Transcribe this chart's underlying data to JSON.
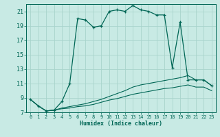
{
  "xlabel": "Humidex (Indice chaleur)",
  "bg_color": "#c8eae4",
  "grid_color": "#a8d4cc",
  "line_color": "#006655",
  "xlim": [
    -0.5,
    23.5
  ],
  "ylim": [
    7,
    22
  ],
  "yticks": [
    7,
    9,
    11,
    13,
    15,
    17,
    19,
    21
  ],
  "xticks": [
    0,
    1,
    2,
    3,
    4,
    5,
    6,
    7,
    8,
    9,
    10,
    11,
    12,
    13,
    14,
    15,
    16,
    17,
    18,
    19,
    20,
    21,
    22,
    23
  ],
  "curve1_x": [
    0,
    1,
    2,
    3,
    4,
    5,
    6,
    7,
    8,
    9,
    10,
    11,
    12,
    13,
    14,
    15,
    16,
    17,
    18,
    19,
    20,
    21,
    22,
    23
  ],
  "curve1_y": [
    8.8,
    7.9,
    7.2,
    7.3,
    8.5,
    11.0,
    20.0,
    19.8,
    18.8,
    19.0,
    21.0,
    21.2,
    21.0,
    21.8,
    21.2,
    21.0,
    20.5,
    20.5,
    13.2,
    19.5,
    11.5,
    11.5,
    11.5,
    10.7
  ],
  "curve2_x": [
    0,
    1,
    2,
    3,
    4,
    5,
    6,
    7,
    8,
    9,
    10,
    11,
    12,
    13,
    14,
    15,
    16,
    17,
    18,
    19,
    20,
    21,
    22,
    23
  ],
  "curve2_y": [
    8.8,
    7.9,
    7.2,
    7.3,
    7.6,
    7.8,
    8.0,
    8.2,
    8.5,
    8.8,
    9.2,
    9.6,
    10.0,
    10.5,
    10.8,
    11.0,
    11.2,
    11.4,
    11.6,
    11.8,
    12.1,
    11.5,
    11.5,
    10.7
  ],
  "curve3_x": [
    0,
    1,
    2,
    3,
    4,
    5,
    6,
    7,
    8,
    9,
    10,
    11,
    12,
    13,
    14,
    15,
    16,
    17,
    18,
    19,
    20,
    21,
    22,
    23
  ],
  "curve3_y": [
    8.8,
    7.9,
    7.2,
    7.3,
    7.5,
    7.6,
    7.8,
    7.9,
    8.1,
    8.4,
    8.7,
    8.9,
    9.2,
    9.5,
    9.7,
    9.9,
    10.1,
    10.3,
    10.4,
    10.6,
    10.8,
    10.5,
    10.5,
    10.0
  ]
}
